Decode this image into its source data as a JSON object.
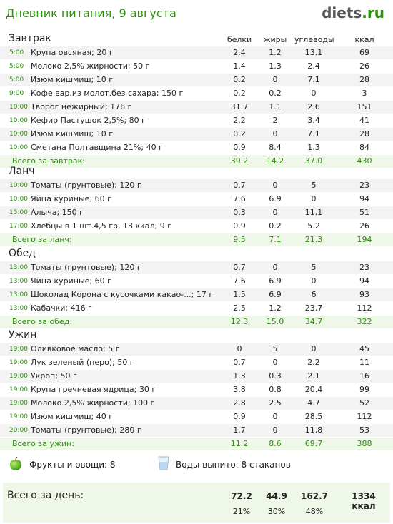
{
  "header": {
    "title": "Дневник питания, 9 августа",
    "logo_main": "diets",
    "logo_suffix": ".ru"
  },
  "columns": {
    "protein": "белки",
    "fat": "жиры",
    "carbs": "углеводы",
    "kcal": "ккал"
  },
  "meals": [
    {
      "title": "Завтрак",
      "items": [
        {
          "time": "5:00",
          "name": "Крупа овсяная; 20 г",
          "p": "2.4",
          "f": "1.2",
          "c": "13.1",
          "k": "69"
        },
        {
          "time": "5:00",
          "name": "Молоко 2,5% жирности; 50 г",
          "p": "1.4",
          "f": "1.3",
          "c": "2.4",
          "k": "26"
        },
        {
          "time": "5:00",
          "name": "Изюм кишмиш; 10 г",
          "p": "0.2",
          "f": "0",
          "c": "7.1",
          "k": "28"
        },
        {
          "time": "9:00",
          "name": "Кофе вар.из молот.без сахара; 150 г",
          "p": "0.2",
          "f": "0.2",
          "c": "0",
          "k": "3"
        },
        {
          "time": "10:00",
          "name": "Творог нежирный; 176 г",
          "p": "31.7",
          "f": "1.1",
          "c": "2.6",
          "k": "151"
        },
        {
          "time": "10:00",
          "name": "Кефир Пастушок 2,5%; 80 г",
          "p": "2.2",
          "f": "2",
          "c": "3.4",
          "k": "41"
        },
        {
          "time": "10:00",
          "name": "Изюм кишмиш; 10 г",
          "p": "0.2",
          "f": "0",
          "c": "7.1",
          "k": "28"
        },
        {
          "time": "10:00",
          "name": "Сметана Полтавщина 21%; 40 г",
          "p": "0.9",
          "f": "8.4",
          "c": "1.3",
          "k": "84"
        }
      ],
      "total": {
        "label": "Всего за завтрак:",
        "p": "39.2",
        "f": "14.2",
        "c": "37.0",
        "k": "430"
      }
    },
    {
      "title": "Ланч",
      "items": [
        {
          "time": "10:00",
          "name": "Томаты (грунтовые); 120 г",
          "p": "0.7",
          "f": "0",
          "c": "5",
          "k": "23"
        },
        {
          "time": "10:00",
          "name": "Яйца куриные; 60 г",
          "p": "7.6",
          "f": "6.9",
          "c": "0",
          "k": "94"
        },
        {
          "time": "15:00",
          "name": "Алыча; 150 г",
          "p": "0.3",
          "f": "0",
          "c": "11.1",
          "k": "51"
        },
        {
          "time": "17:00",
          "name": "Хлебцы в 1 шт.4,5 гр, 13 ккал; 9 г",
          "p": "0.9",
          "f": "0.2",
          "c": "5.2",
          "k": "26"
        }
      ],
      "total": {
        "label": "Всего за ланч:",
        "p": "9.5",
        "f": "7.1",
        "c": "21.3",
        "k": "194"
      }
    },
    {
      "title": "Обед",
      "items": [
        {
          "time": "13:00",
          "name": "Томаты (грунтовые); 120 г",
          "p": "0.7",
          "f": "0",
          "c": "5",
          "k": "23"
        },
        {
          "time": "13:00",
          "name": "Яйца куриные; 60 г",
          "p": "7.6",
          "f": "6.9",
          "c": "0",
          "k": "94"
        },
        {
          "time": "13:00",
          "name": "Шоколад Корона с кусочками какао-...; 17 г",
          "p": "1.5",
          "f": "6.9",
          "c": "6",
          "k": "93"
        },
        {
          "time": "13:00",
          "name": "Кабачки; 416 г",
          "p": "2.5",
          "f": "1.2",
          "c": "23.7",
          "k": "112"
        }
      ],
      "total": {
        "label": "Всего за обед:",
        "p": "12.3",
        "f": "15.0",
        "c": "34.7",
        "k": "322"
      }
    },
    {
      "title": "Ужин",
      "items": [
        {
          "time": "19:00",
          "name": "Оливковое масло; 5 г",
          "p": "0",
          "f": "5",
          "c": "0",
          "k": "45"
        },
        {
          "time": "19:00",
          "name": "Лук зеленый (перо); 50 г",
          "p": "0.7",
          "f": "0",
          "c": "2.2",
          "k": "11"
        },
        {
          "time": "19:00",
          "name": "Укроп; 50 г",
          "p": "1.3",
          "f": "0.3",
          "c": "2.1",
          "k": "16"
        },
        {
          "time": "19:00",
          "name": "Крупа гречневая ядрица; 30 г",
          "p": "3.8",
          "f": "0.8",
          "c": "20.4",
          "k": "99"
        },
        {
          "time": "19:00",
          "name": "Молоко 2,5% жирности; 100 г",
          "p": "2.8",
          "f": "2.5",
          "c": "4.7",
          "k": "52"
        },
        {
          "time": "19:00",
          "name": "Изюм кишмиш; 40 г",
          "p": "0.9",
          "f": "0",
          "c": "28.5",
          "k": "112"
        },
        {
          "time": "20:00",
          "name": "Томаты (грунтовые); 280 г",
          "p": "1.7",
          "f": "0",
          "c": "11.8",
          "k": "53"
        }
      ],
      "total": {
        "label": "Всего за ужин:",
        "p": "11.2",
        "f": "8.6",
        "c": "69.7",
        "k": "388"
      }
    }
  ],
  "footer": {
    "fruits_label": "Фрукты и овощи: 8",
    "water_label": "Воды выпито: 8 стаканов",
    "fruit_icon": "apple-icon",
    "water_icon": "glass-icon"
  },
  "day_total": {
    "label": "Всего за день:",
    "protein": "72.2",
    "fat": "44.9",
    "carbs": "162.7",
    "kcal": "1334 ккал",
    "protein_pct": "21%",
    "fat_pct": "30%",
    "carbs_pct": "48%"
  },
  "colors": {
    "accent": "#2f8f10",
    "total_bg": "#eef7e8",
    "row_alt": "#f3f3f3"
  }
}
